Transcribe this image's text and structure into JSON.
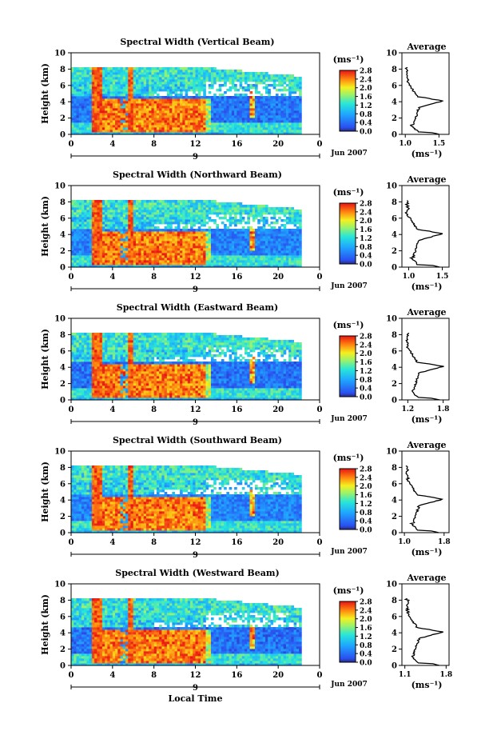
{
  "chart_data": [
    {
      "type": "heatmap",
      "title": "Spectral Width (Vertical Beam)",
      "ylabel": "Height (km)",
      "xlabel": "",
      "x_ticks": [
        "0",
        "4",
        "8",
        "12",
        "16",
        "20",
        "0"
      ],
      "y_ticks": [
        "0",
        "2",
        "4",
        "6",
        "8",
        "10"
      ],
      "xlim": [
        0,
        24
      ],
      "ylim": [
        0,
        10
      ],
      "date_label": "Jun 2007",
      "day_label": "9",
      "colorbar": {
        "unit": "(ms⁻¹)",
        "ticks": [
          "0.0",
          "0.4",
          "0.8",
          "1.2",
          "1.6",
          "2.0",
          "2.4",
          "2.8"
        ]
      },
      "profile": {
        "title": "Average",
        "xlabel": "(ms⁻¹)",
        "x_ticks": [
          "1.0",
          "1.5"
        ],
        "xlim": [
          0.95,
          1.65
        ],
        "y_ticks": [
          "0",
          "2",
          "4",
          "6",
          "8",
          "10"
        ],
        "ylim": [
          0,
          10
        ]
      }
    },
    {
      "type": "heatmap",
      "title": "Spectral Width (Northward Beam)",
      "ylabel": "Height (km)",
      "xlabel": "",
      "x_ticks": [
        "0",
        "4",
        "8",
        "12",
        "16",
        "20",
        "0"
      ],
      "y_ticks": [
        "0",
        "2",
        "4",
        "6",
        "8",
        "10"
      ],
      "xlim": [
        0,
        24
      ],
      "ylim": [
        0,
        10
      ],
      "date_label": "Jun 2007",
      "day_label": "9",
      "colorbar": {
        "unit": "(ms⁻¹)",
        "ticks": [
          "0.0",
          "0.4",
          "0.8",
          "1.2",
          "1.6",
          "2.0",
          "2.4",
          "2.8"
        ]
      },
      "profile": {
        "title": "Average",
        "xlabel": "(ms⁻¹)",
        "x_ticks": [
          "1.0",
          "1.5"
        ],
        "xlim": [
          0.9,
          1.6
        ],
        "y_ticks": [
          "0",
          "2",
          "4",
          "6",
          "8",
          "10"
        ],
        "ylim": [
          0,
          10
        ]
      }
    },
    {
      "type": "heatmap",
      "title": "Spectral Width (Eastward Beam)",
      "ylabel": "Height (km)",
      "xlabel": "",
      "x_ticks": [
        "0",
        "4",
        "8",
        "12",
        "16",
        "20",
        "0"
      ],
      "y_ticks": [
        "0",
        "2",
        "4",
        "6",
        "8",
        "10"
      ],
      "xlim": [
        0,
        24
      ],
      "ylim": [
        0,
        10
      ],
      "date_label": "Jun 2007",
      "day_label": "9",
      "colorbar": {
        "unit": "(ms⁻¹)",
        "ticks": [
          "0.0",
          "0.4",
          "0.8",
          "1.2",
          "1.6",
          "2.0",
          "2.4",
          "2.8"
        ]
      },
      "profile": {
        "title": "Average",
        "xlabel": "(ms⁻¹)",
        "x_ticks": [
          "1.2",
          "1.8"
        ],
        "xlim": [
          1.1,
          1.9
        ],
        "y_ticks": [
          "0",
          "2",
          "4",
          "6",
          "8",
          "10"
        ],
        "ylim": [
          0,
          10
        ]
      }
    },
    {
      "type": "heatmap",
      "title": "Spectral Width (Southward Beam)",
      "ylabel": "Height (km)",
      "xlabel": "",
      "x_ticks": [
        "0",
        "4",
        "8",
        "12",
        "16",
        "20",
        "0"
      ],
      "y_ticks": [
        "0",
        "2",
        "4",
        "6",
        "8",
        "10"
      ],
      "xlim": [
        0,
        24
      ],
      "ylim": [
        0,
        10
      ],
      "date_label": "Jun 2007",
      "day_label": "9",
      "colorbar": {
        "unit": "(ms⁻¹)",
        "ticks": [
          "0.0",
          "0.4",
          "0.8",
          "1.2",
          "1.6",
          "2.0",
          "2.4",
          "2.8"
        ]
      },
      "profile": {
        "title": "Average",
        "xlabel": "(ms⁻¹)",
        "x_ticks": [
          "1.0",
          "1.8"
        ],
        "xlim": [
          0.95,
          1.9
        ],
        "y_ticks": [
          "0",
          "2",
          "4",
          "6",
          "8",
          "10"
        ],
        "ylim": [
          0,
          10
        ]
      }
    },
    {
      "type": "heatmap",
      "title": "Spectral Width (Westward Beam)",
      "ylabel": "Height (km)",
      "xlabel": "Local Time",
      "x_ticks": [
        "0",
        "4",
        "8",
        "12",
        "16",
        "20",
        "0"
      ],
      "y_ticks": [
        "0",
        "2",
        "4",
        "6",
        "8",
        "10"
      ],
      "xlim": [
        0,
        24
      ],
      "ylim": [
        0,
        10
      ],
      "date_label": "Jun 2007",
      "day_label": "9",
      "colorbar": {
        "unit": "(ms⁻¹)",
        "ticks": [
          "0.0",
          "0.4",
          "0.8",
          "1.2",
          "1.6",
          "2.0",
          "2.4",
          "2.8"
        ]
      },
      "profile": {
        "title": "Average",
        "xlabel": "(ms⁻¹)",
        "x_ticks": [
          "1.1",
          "1.8"
        ],
        "xlim": [
          1.05,
          1.85
        ],
        "y_ticks": [
          "0",
          "2",
          "4",
          "6",
          "8",
          "10"
        ],
        "ylim": [
          0,
          10
        ]
      }
    }
  ]
}
